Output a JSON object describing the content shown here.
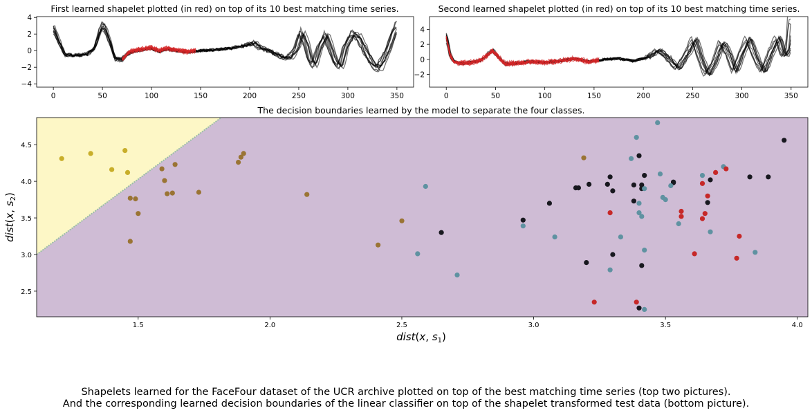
{
  "caption": {
    "line1": "Shapelets learned for the FaceFour dataset of the UCR archive plotted on top of the best matching time series (top two pictures).",
    "line2": "And the corresponding learned decision boundaries of the linear classifier on top of the shapelet transformed test data (bottom picture)."
  },
  "chart_data": [
    {
      "type": "line",
      "title": "First learned shapelet plotted (in red) on top of its 10 best matching time series.",
      "xlabel": "",
      "ylabel": "",
      "xlim": [
        -17,
        367
      ],
      "ylim": [
        -4.4,
        4.1
      ],
      "xticks": [
        0,
        50,
        100,
        150,
        200,
        250,
        300,
        350
      ],
      "yticks": [
        -4,
        -2,
        0,
        2,
        4
      ],
      "colors": {
        "series": "#000000",
        "shapelet": "#d62728"
      },
      "series_count": 10,
      "shapelet_count": 10,
      "profile": {
        "x": [
          0,
          8,
          12,
          25,
          35,
          42,
          47,
          50,
          53,
          58,
          63,
          70,
          78,
          90,
          100,
          108,
          115,
          125,
          135,
          150,
          165,
          180,
          195,
          205,
          212,
          220,
          230,
          240,
          248,
          253,
          258,
          262,
          266,
          272,
          278,
          283,
          288,
          293,
          298,
          305,
          312,
          320,
          326,
          332,
          337,
          342,
          346,
          350
        ],
        "y": [
          2.8,
          0.5,
          -0.5,
          -0.6,
          -0.4,
          0.3,
          2.2,
          3.0,
          2.7,
          1.0,
          -1.0,
          -1.1,
          -0.2,
          0.1,
          0.3,
          -0.1,
          0.2,
          0.0,
          -0.2,
          0.0,
          0.1,
          0.3,
          0.6,
          1.0,
          0.3,
          0.0,
          -0.6,
          -1.0,
          0.2,
          2.3,
          0.8,
          -1.2,
          -1.8,
          0.5,
          2.0,
          0.2,
          -1.5,
          -2.0,
          0.4,
          2.1,
          1.6,
          -0.5,
          -1.8,
          -2.2,
          -1.0,
          0.3,
          1.8,
          3.0
        ]
      },
      "shapelet_x_range": [
        70,
        145
      ]
    },
    {
      "type": "line",
      "title": "Second learned shapelet plotted (in red) on top of its 10 best matching time series.",
      "xlabel": "",
      "ylabel": "",
      "xlim": [
        -17,
        367
      ],
      "ylim": [
        -3.7,
        5.7
      ],
      "xticks": [
        0,
        50,
        100,
        150,
        200,
        250,
        300,
        350
      ],
      "yticks": [
        -2,
        0,
        2,
        4
      ],
      "colors": {
        "series": "#000000",
        "shapelet": "#d62728"
      },
      "series_count": 10,
      "shapelet_count": 10,
      "profile": {
        "x": [
          0,
          4,
          8,
          15,
          25,
          35,
          42,
          47,
          53,
          60,
          70,
          85,
          100,
          115,
          130,
          145,
          160,
          175,
          190,
          205,
          215,
          225,
          235,
          245,
          252,
          258,
          265,
          272,
          280,
          287,
          293,
          300,
          307,
          315,
          322,
          330,
          337,
          343,
          348,
          350
        ],
        "y": [
          3.0,
          0.5,
          -0.3,
          -0.5,
          -0.4,
          -0.1,
          0.6,
          1.2,
          0.3,
          -0.6,
          -0.5,
          -0.3,
          -0.4,
          -0.2,
          0.1,
          -0.3,
          0.0,
          0.1,
          -0.2,
          0.3,
          1.2,
          0.2,
          -1.2,
          0.8,
          2.6,
          0.2,
          -2.0,
          -0.5,
          2.2,
          0.6,
          -1.6,
          0.8,
          2.7,
          0.0,
          -1.6,
          1.0,
          2.8,
          0.3,
          1.5,
          5.2
        ]
      },
      "shapelet_x_range": [
        0,
        155
      ]
    },
    {
      "type": "scatter",
      "title": "The decision boundaries learned by the model to separate the four classes.",
      "xlabel": "dist(x, s1)",
      "ylabel": "dist(x, s2)",
      "xlim": [
        1.115,
        4.04
      ],
      "ylim": [
        2.15,
        4.87
      ],
      "xticks": [
        1.5,
        2.0,
        2.5,
        3.0,
        3.5,
        4.0
      ],
      "xticklabels": [
        "1.5",
        "2.0",
        "2.5",
        "3.0",
        "3.5",
        "4.0"
      ],
      "yticks": [
        2.5,
        3.0,
        3.5,
        4.0,
        4.5
      ],
      "yticklabels": [
        "2.5",
        "3.0",
        "3.5",
        "4.0",
        "4.5"
      ],
      "regions": [
        {
          "name": "yellow-region",
          "color": "#fdf7c6"
        },
        {
          "name": "purple-region",
          "color": "#cfbcd5"
        }
      ],
      "boundary_line": {
        "points": [
          [
            1.115,
            3.0
          ],
          [
            1.815,
            4.87
          ]
        ]
      },
      "series": [
        {
          "color": "#c8ae2a",
          "points": [
            [
              1.21,
              4.31
            ],
            [
              1.32,
              4.38
            ],
            [
              1.4,
              4.16
            ],
            [
              1.45,
              4.42
            ],
            [
              1.46,
              4.12
            ]
          ]
        },
        {
          "color": "#9a7434",
          "points": [
            [
              1.47,
              3.77
            ],
            [
              1.47,
              3.18
            ],
            [
              1.49,
              3.76
            ],
            [
              1.5,
              3.56
            ],
            [
              1.59,
              4.17
            ],
            [
              1.6,
              4.01
            ],
            [
              1.61,
              3.83
            ],
            [
              1.63,
              3.84
            ],
            [
              1.64,
              4.23
            ],
            [
              1.73,
              3.85
            ],
            [
              1.88,
              4.26
            ],
            [
              1.89,
              4.33
            ],
            [
              1.9,
              4.38
            ],
            [
              2.14,
              3.82
            ],
            [
              2.41,
              3.13
            ],
            [
              2.5,
              3.46
            ],
            [
              3.19,
              4.32
            ]
          ]
        },
        {
          "color": "#18181f",
          "points": [
            [
              2.65,
              3.3
            ],
            [
              2.96,
              3.47
            ],
            [
              3.06,
              3.7
            ],
            [
              3.16,
              3.91
            ],
            [
              3.17,
              3.91
            ],
            [
              3.2,
              2.89
            ],
            [
              3.21,
              3.96
            ],
            [
              3.28,
              3.96
            ],
            [
              3.29,
              4.06
            ],
            [
              3.3,
              3.87
            ],
            [
              3.3,
              3.0
            ],
            [
              3.38,
              3.95
            ],
            [
              3.38,
              3.73
            ],
            [
              3.4,
              2.27
            ],
            [
              3.4,
              4.35
            ],
            [
              3.41,
              3.9
            ],
            [
              3.41,
              3.95
            ],
            [
              3.41,
              2.85
            ],
            [
              3.42,
              4.08
            ],
            [
              3.53,
              3.99
            ],
            [
              3.53,
              3.98
            ],
            [
              3.66,
              3.71
            ],
            [
              3.67,
              4.02
            ],
            [
              3.82,
              4.06
            ],
            [
              3.89,
              4.06
            ],
            [
              3.95,
              4.56
            ]
          ]
        },
        {
          "color": "#5f92a1",
          "points": [
            [
              2.56,
              3.01
            ],
            [
              2.59,
              3.93
            ],
            [
              2.71,
              2.72
            ],
            [
              2.96,
              3.39
            ],
            [
              3.08,
              3.24
            ],
            [
              3.29,
              2.79
            ],
            [
              3.33,
              3.24
            ],
            [
              3.37,
              4.31
            ],
            [
              3.39,
              4.6
            ],
            [
              3.4,
              3.7
            ],
            [
              3.4,
              3.57
            ],
            [
              3.41,
              3.52
            ],
            [
              3.42,
              3.9
            ],
            [
              3.42,
              3.06
            ],
            [
              3.42,
              2.25
            ],
            [
              3.47,
              4.8
            ],
            [
              3.48,
              4.1
            ],
            [
              3.49,
              3.78
            ],
            [
              3.5,
              3.75
            ],
            [
              3.52,
              3.94
            ],
            [
              3.55,
              3.42
            ],
            [
              3.64,
              4.08
            ],
            [
              3.67,
              3.31
            ],
            [
              3.72,
              4.2
            ],
            [
              3.84,
              3.03
            ]
          ]
        },
        {
          "color": "#c62828",
          "points": [
            [
              3.23,
              2.35
            ],
            [
              3.29,
              3.57
            ],
            [
              3.39,
              2.35
            ],
            [
              3.56,
              3.52
            ],
            [
              3.56,
              3.59
            ],
            [
              3.61,
              3.01
            ],
            [
              3.64,
              3.49
            ],
            [
              3.64,
              3.97
            ],
            [
              3.65,
              3.56
            ],
            [
              3.66,
              3.8
            ],
            [
              3.69,
              4.12
            ],
            [
              3.73,
              4.17
            ],
            [
              3.77,
              2.95
            ],
            [
              3.78,
              3.25
            ]
          ]
        }
      ]
    }
  ]
}
